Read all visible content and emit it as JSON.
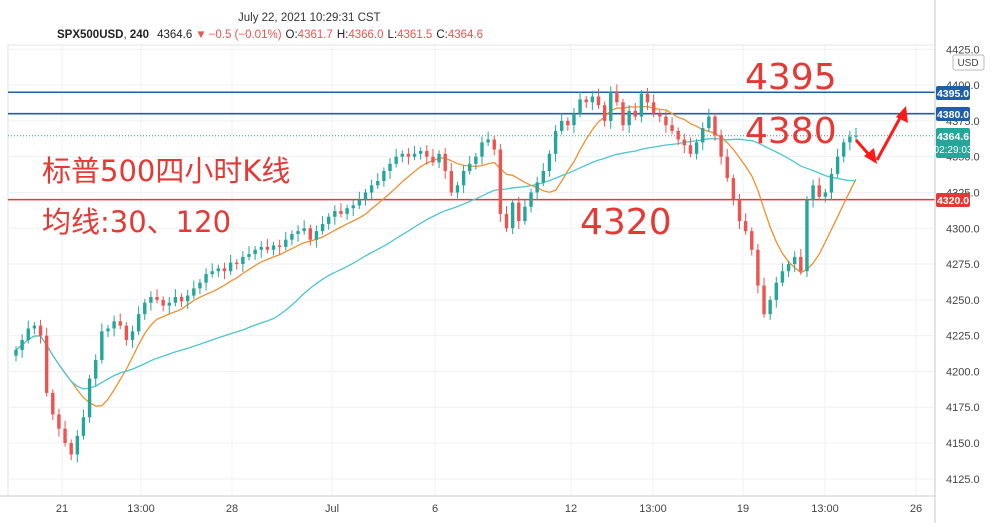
{
  "header": {
    "datetime": "July 22, 2021 10:29:31 CST",
    "symbol": "SPX500USD",
    "interval": "240",
    "last": "4364.6",
    "change": "−0.5 (−0.01%)",
    "o_label": "O:",
    "o_value": "4361.7",
    "h_label": "H:",
    "h_value": "4366.0",
    "l_label": "L:",
    "l_value": "4361.5",
    "c_label": "C:",
    "c_value": "4364.6"
  },
  "annotations": {
    "title_line1": "标普500四小时K线",
    "title_line2": "均线:30、120",
    "level_4395": "4395",
    "level_4380": "4380",
    "level_4320": "4320"
  },
  "price_badges": {
    "level_4395": "4395.0",
    "level_4380": "4380.0",
    "level_4320": "4320.0",
    "last_price": "4364.6",
    "countdown": "02:29:03"
  },
  "axis_unit": "USD",
  "colors": {
    "up": "#26a69a",
    "down": "#ef5350",
    "ma30": "#f0902e",
    "ma120": "#4dc6cf",
    "blue_line": "#1f5fa8",
    "red_line": "#e53935",
    "annotation_red": "#e53935",
    "arrow": "#ff1a1a",
    "last_badge": "#26a69a"
  },
  "chart_data": {
    "type": "candlestick",
    "x_tick_labels": [
      "21",
      "13:00",
      "28",
      "Jul",
      "6",
      "12",
      "13:00",
      "19",
      "13:00",
      "26"
    ],
    "y_ticks": [
      4125,
      4150,
      4175,
      4200,
      4225,
      4250,
      4275,
      4300,
      4325,
      4350,
      4375,
      4400,
      4425
    ],
    "y_tick_labels": [
      "4125.0",
      "4150.0",
      "4175.0",
      "4200.0",
      "4225.0",
      "4250.0",
      "4275.0",
      "4300.0",
      "4325.0",
      "4350.0",
      "4375.0",
      "4400.0",
      "4425.0"
    ],
    "ylim": [
      4113,
      4428
    ],
    "horizontal_levels": [
      {
        "value": 4395.0,
        "color": "#1f5fa8"
      },
      {
        "value": 4380.0,
        "color": "#1f5fa8"
      },
      {
        "value": 4320.0,
        "color": "#e53935"
      }
    ],
    "last_price_line": 4364.6,
    "moving_averages": [
      {
        "period": 30,
        "color": "#f0902e"
      },
      {
        "period": 120,
        "color": "#4dc6cf"
      }
    ],
    "closes": [
      4215,
      4222,
      4230,
      4232,
      4225,
      4185,
      4170,
      4160,
      4150,
      4142,
      4155,
      4168,
      4195,
      4208,
      4228,
      4230,
      4235,
      4232,
      4222,
      4228,
      4240,
      4248,
      4252,
      4250,
      4246,
      4248,
      4252,
      4249,
      4253,
      4258,
      4262,
      4268,
      4270,
      4272,
      4270,
      4276,
      4275,
      4280,
      4282,
      4285,
      4287,
      4285,
      4288,
      4287,
      4292,
      4296,
      4298,
      4300,
      4292,
      4298,
      4303,
      4308,
      4312,
      4310,
      4314,
      4316,
      4320,
      4325,
      4330,
      4333,
      4340,
      4345,
      4350,
      4352,
      4350,
      4352,
      4354,
      4350,
      4346,
      4352,
      4340,
      4325,
      4330,
      4340,
      4345,
      4350,
      4360,
      4362,
      4355,
      4310,
      4300,
      4318,
      4305,
      4315,
      4325,
      4332,
      4340,
      4352,
      4368,
      4375,
      4372,
      4380,
      4390,
      4388,
      4392,
      4386,
      4375,
      4395,
      4388,
      4372,
      4382,
      4378,
      4394,
      4388,
      4380,
      4378,
      4372,
      4368,
      4362,
      4358,
      4352,
      4360,
      4370,
      4378,
      4365,
      4350,
      4335,
      4320,
      4305,
      4298,
      4285,
      4260,
      4240,
      4250,
      4262,
      4270,
      4275,
      4280,
      4270,
      4320,
      4330,
      4322,
      4325,
      4338,
      4350,
      4360,
      4364,
      4364.6
    ]
  }
}
